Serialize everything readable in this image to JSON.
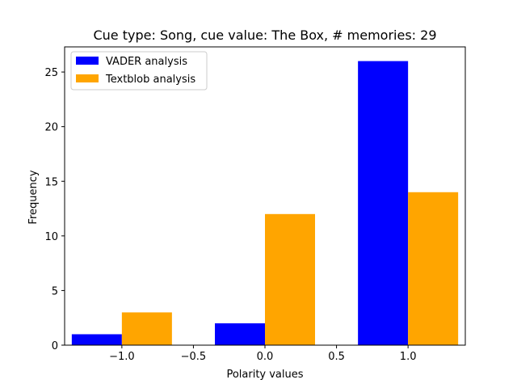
{
  "chart_data": {
    "type": "bar",
    "title": "Cue type: Song, cue value: The Box, # memories: 29",
    "xlabel": "Polarity values",
    "ylabel": "Frequency",
    "xlim": [
      -1.4,
      1.4
    ],
    "ylim": [
      0,
      27.3
    ],
    "xticks": [
      -1.0,
      -0.5,
      0.0,
      0.5,
      1.0
    ],
    "xtick_labels": [
      "−1.0",
      "−0.5",
      "0.0",
      "0.5",
      "1.0"
    ],
    "yticks": [
      0,
      5,
      10,
      15,
      20,
      25
    ],
    "ytick_labels": [
      "0",
      "5",
      "10",
      "15",
      "20",
      "25"
    ],
    "bin_width": 0.35,
    "x": [
      -1.0,
      0.0,
      1.0
    ],
    "series": [
      {
        "name": "VADER analysis",
        "color": "#0000ff",
        "values": [
          1,
          2,
          26
        ],
        "offset": -0.175
      },
      {
        "name": "Textblob analysis",
        "color": "#ffa500",
        "values": [
          3,
          12,
          14
        ],
        "offset": 0.175
      }
    ],
    "legend": "top-left",
    "grid": false
  }
}
